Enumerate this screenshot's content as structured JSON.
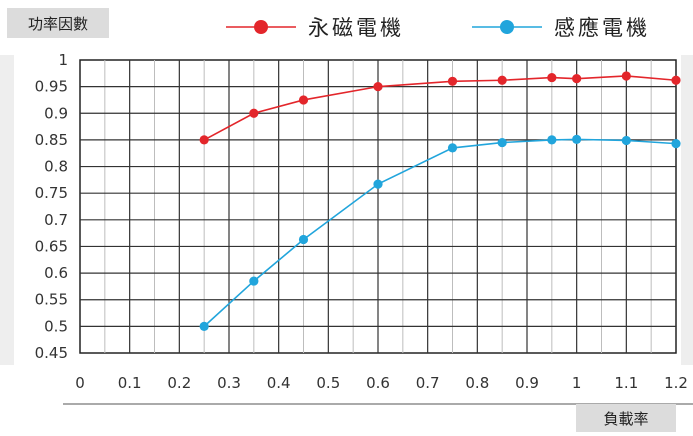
{
  "chart_data": {
    "type": "line",
    "ylabel": "功率因數",
    "xlabel": "負載率",
    "xlim": [
      0,
      1.2
    ],
    "ylim": [
      0.45,
      1
    ],
    "x_ticks": [
      "0",
      "0.1",
      "0.2",
      "0.3",
      "0.4",
      "0.5",
      "0.6",
      "0.7",
      "0.8",
      "0.9",
      "1",
      "1.1",
      "1.2"
    ],
    "y_ticks": [
      "1",
      "0.95",
      "0.9",
      "0.85",
      "0.8",
      "0.75",
      "0.7",
      "0.65",
      "0.6",
      "0.55",
      "0.5",
      "0.45"
    ],
    "grid": true,
    "legend_position": "top",
    "series": [
      {
        "name": "永磁電機",
        "color": "#e3262b",
        "points": [
          [
            0.25,
            0.85
          ],
          [
            0.35,
            0.9
          ],
          [
            0.45,
            0.925
          ],
          [
            0.6,
            0.95
          ],
          [
            0.75,
            0.96
          ],
          [
            0.85,
            0.962
          ],
          [
            0.95,
            0.967
          ],
          [
            1.0,
            0.965
          ],
          [
            1.1,
            0.97
          ],
          [
            1.2,
            0.962
          ]
        ]
      },
      {
        "name": "感應電機",
        "color": "#21a5dc",
        "points": [
          [
            0.25,
            0.5
          ],
          [
            0.35,
            0.585
          ],
          [
            0.45,
            0.663
          ],
          [
            0.6,
            0.767
          ],
          [
            0.75,
            0.835
          ],
          [
            0.85,
            0.845
          ],
          [
            0.95,
            0.85
          ],
          [
            1.0,
            0.851
          ],
          [
            1.1,
            0.849
          ],
          [
            1.2,
            0.843
          ]
        ]
      }
    ]
  }
}
